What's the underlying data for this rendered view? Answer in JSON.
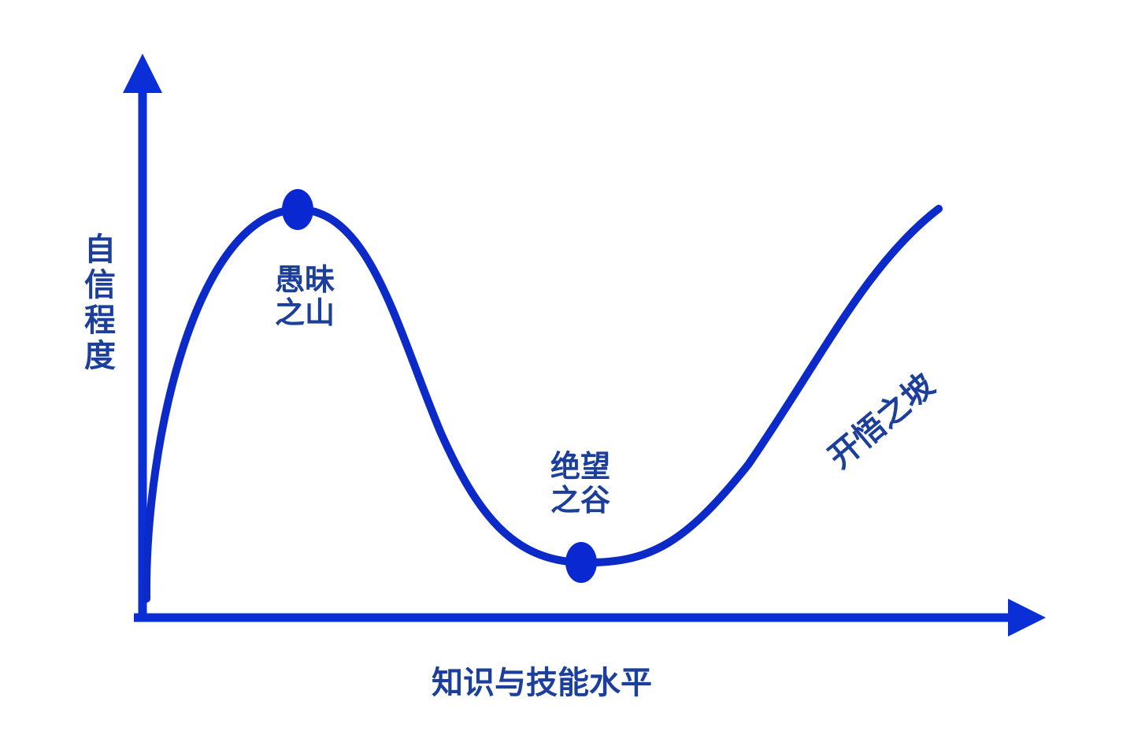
{
  "diagram": {
    "y_axis_label": [
      "自",
      "信",
      "程",
      "度"
    ],
    "x_axis_label": "知识与技能水平",
    "peak_label": [
      "愚昧",
      "之山"
    ],
    "valley_label": [
      "绝望",
      "之谷"
    ],
    "slope_label": "开悟之坡",
    "colors": {
      "axis": "#0a2fd6",
      "curve": "#0b2ac8",
      "marker": "#0a28d2",
      "text": "#1d3f9c",
      "background": "#ffffff"
    }
  }
}
